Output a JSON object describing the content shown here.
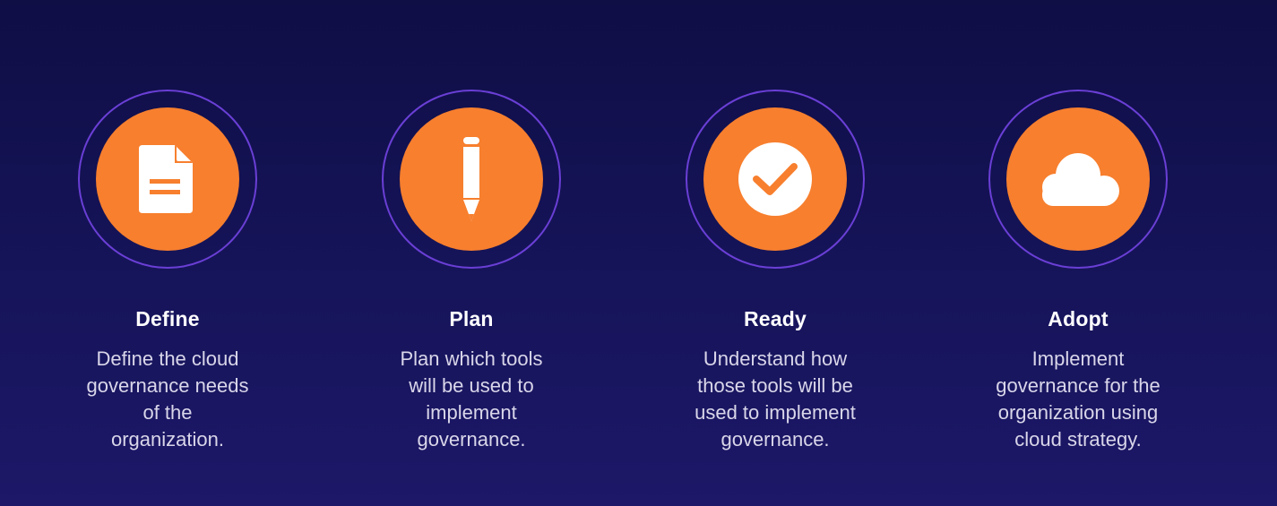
{
  "colors": {
    "background": "#15135a",
    "accent": "#f77f2e",
    "ring": "#6a3fd6",
    "title": "#ffffff",
    "text": "#d9d6ea"
  },
  "steps": [
    {
      "icon": "document-icon",
      "title": "Define",
      "lines": [
        "Define the cloud",
        "governance needs",
        "of the",
        "organization."
      ]
    },
    {
      "icon": "pencil-icon",
      "title": "Plan",
      "lines": [
        "Plan which tools",
        "will be used to",
        "implement",
        "governance."
      ]
    },
    {
      "icon": "check-circle-icon",
      "title": "Ready",
      "lines": [
        "Understand how",
        "those tools will be",
        "used to implement",
        "governance."
      ]
    },
    {
      "icon": "cloud-icon",
      "title": "Adopt",
      "lines": [
        "Implement",
        "governance for the",
        "organization using",
        "cloud strategy."
      ]
    }
  ]
}
